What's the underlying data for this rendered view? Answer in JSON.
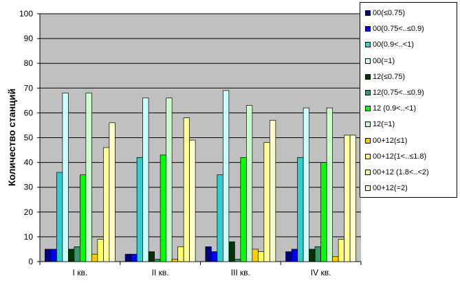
{
  "chart_data": {
    "type": "bar",
    "title": "",
    "xlabel": "",
    "ylabel": "Количество станций",
    "ylim": [
      0,
      100
    ],
    "yticks": [
      0,
      10,
      20,
      30,
      40,
      50,
      60,
      70,
      80,
      90,
      100
    ],
    "grid": true,
    "legend_position": "right",
    "plot_background": "#c0c0c0",
    "categories": [
      "I кв.",
      "II кв.",
      "III кв.",
      "IV кв."
    ],
    "series": [
      {
        "name": "00(≤0.75)",
        "color": "#000080",
        "values": [
          5,
          3,
          6,
          4
        ]
      },
      {
        "name": "00(0.75<..≤0.9)",
        "color": "#0000ff",
        "values": [
          5,
          3,
          4,
          5
        ]
      },
      {
        "name": "00(0.9<..<1)",
        "color": "#33cccc",
        "values": [
          36,
          42,
          35,
          42
        ]
      },
      {
        "name": "00(=1)",
        "color": "#ccffff",
        "values": [
          68,
          66,
          69,
          62
        ]
      },
      {
        "name": "12(≤0.75)",
        "color": "#003300",
        "values": [
          5,
          4,
          8,
          5
        ]
      },
      {
        "name": "12(0.75<..≤0.9)",
        "color": "#339966",
        "values": [
          6,
          1,
          1,
          6
        ]
      },
      {
        "name": "12 (0.9<..<1)",
        "color": "#00ff00",
        "values": [
          35,
          43,
          42,
          40
        ]
      },
      {
        "name": "12(=1)",
        "color": "#ccffcc",
        "values": [
          68,
          66,
          63,
          62
        ]
      },
      {
        "name": "00+12(≤1)",
        "color": "#ffcc00",
        "values": [
          3,
          1,
          5,
          2
        ]
      },
      {
        "name": "00+12(1<..≤1.8)",
        "color": "#ffff66",
        "values": [
          9,
          6,
          4,
          9
        ]
      },
      {
        "name": "00+12 (1.8<..<2)",
        "color": "#ffff99",
        "values": [
          46,
          58,
          48,
          51
        ]
      },
      {
        "name": "00+12(=2)",
        "color": "#ffffcc",
        "values": [
          56,
          49,
          57,
          51
        ]
      }
    ]
  }
}
